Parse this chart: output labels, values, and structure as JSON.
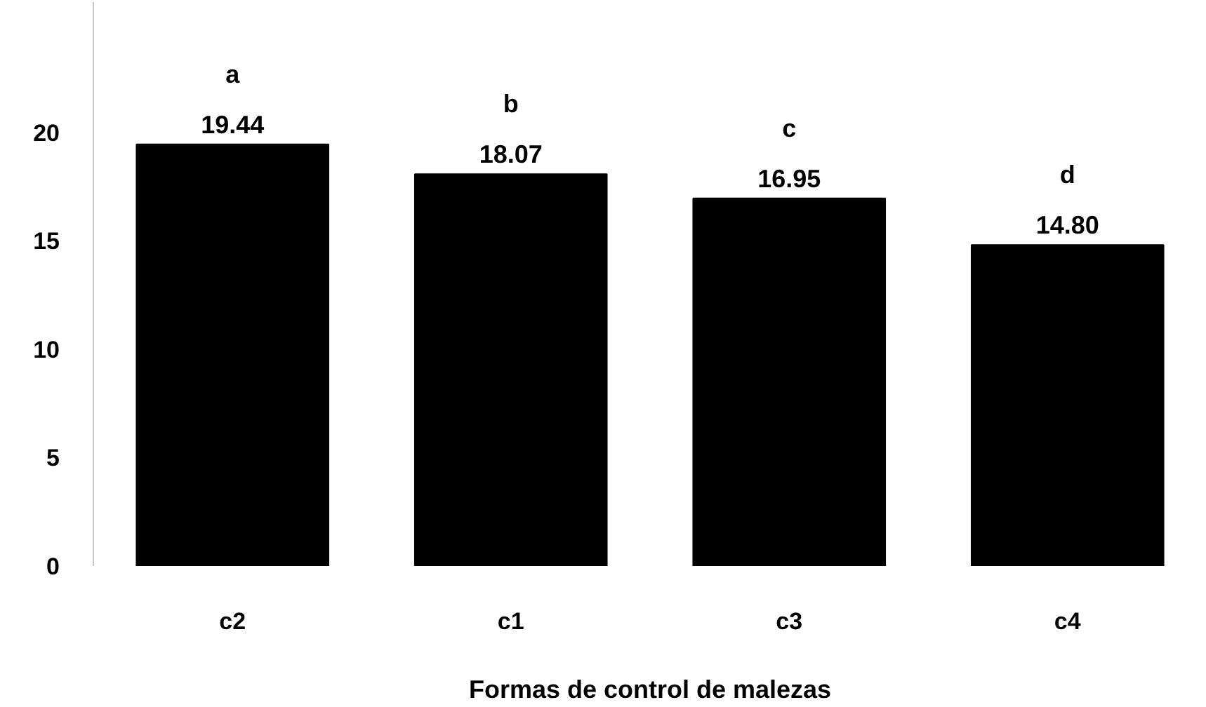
{
  "chart_data": {
    "type": "bar",
    "xlabel": "Formas de control de malezas",
    "categories": [
      "c2",
      "c1",
      "c3",
      "c4"
    ],
    "values": [
      19.44,
      18.07,
      16.95,
      14.8
    ],
    "value_labels": [
      "19.44",
      "18.07",
      "16.95",
      "14.80"
    ],
    "color": "#000000",
    "ylim": [
      0,
      26
    ],
    "yticks": [
      0,
      5,
      10,
      15,
      20
    ],
    "annotations": [
      {
        "text": "a",
        "x": "c2",
        "y": 19.44
      },
      {
        "text": "b",
        "x": "c1",
        "y": 18.07
      },
      {
        "text": "c",
        "x": "c3",
        "y": 16.95
      },
      {
        "text": "d",
        "x": "c4",
        "y": 14.8
      }
    ]
  }
}
